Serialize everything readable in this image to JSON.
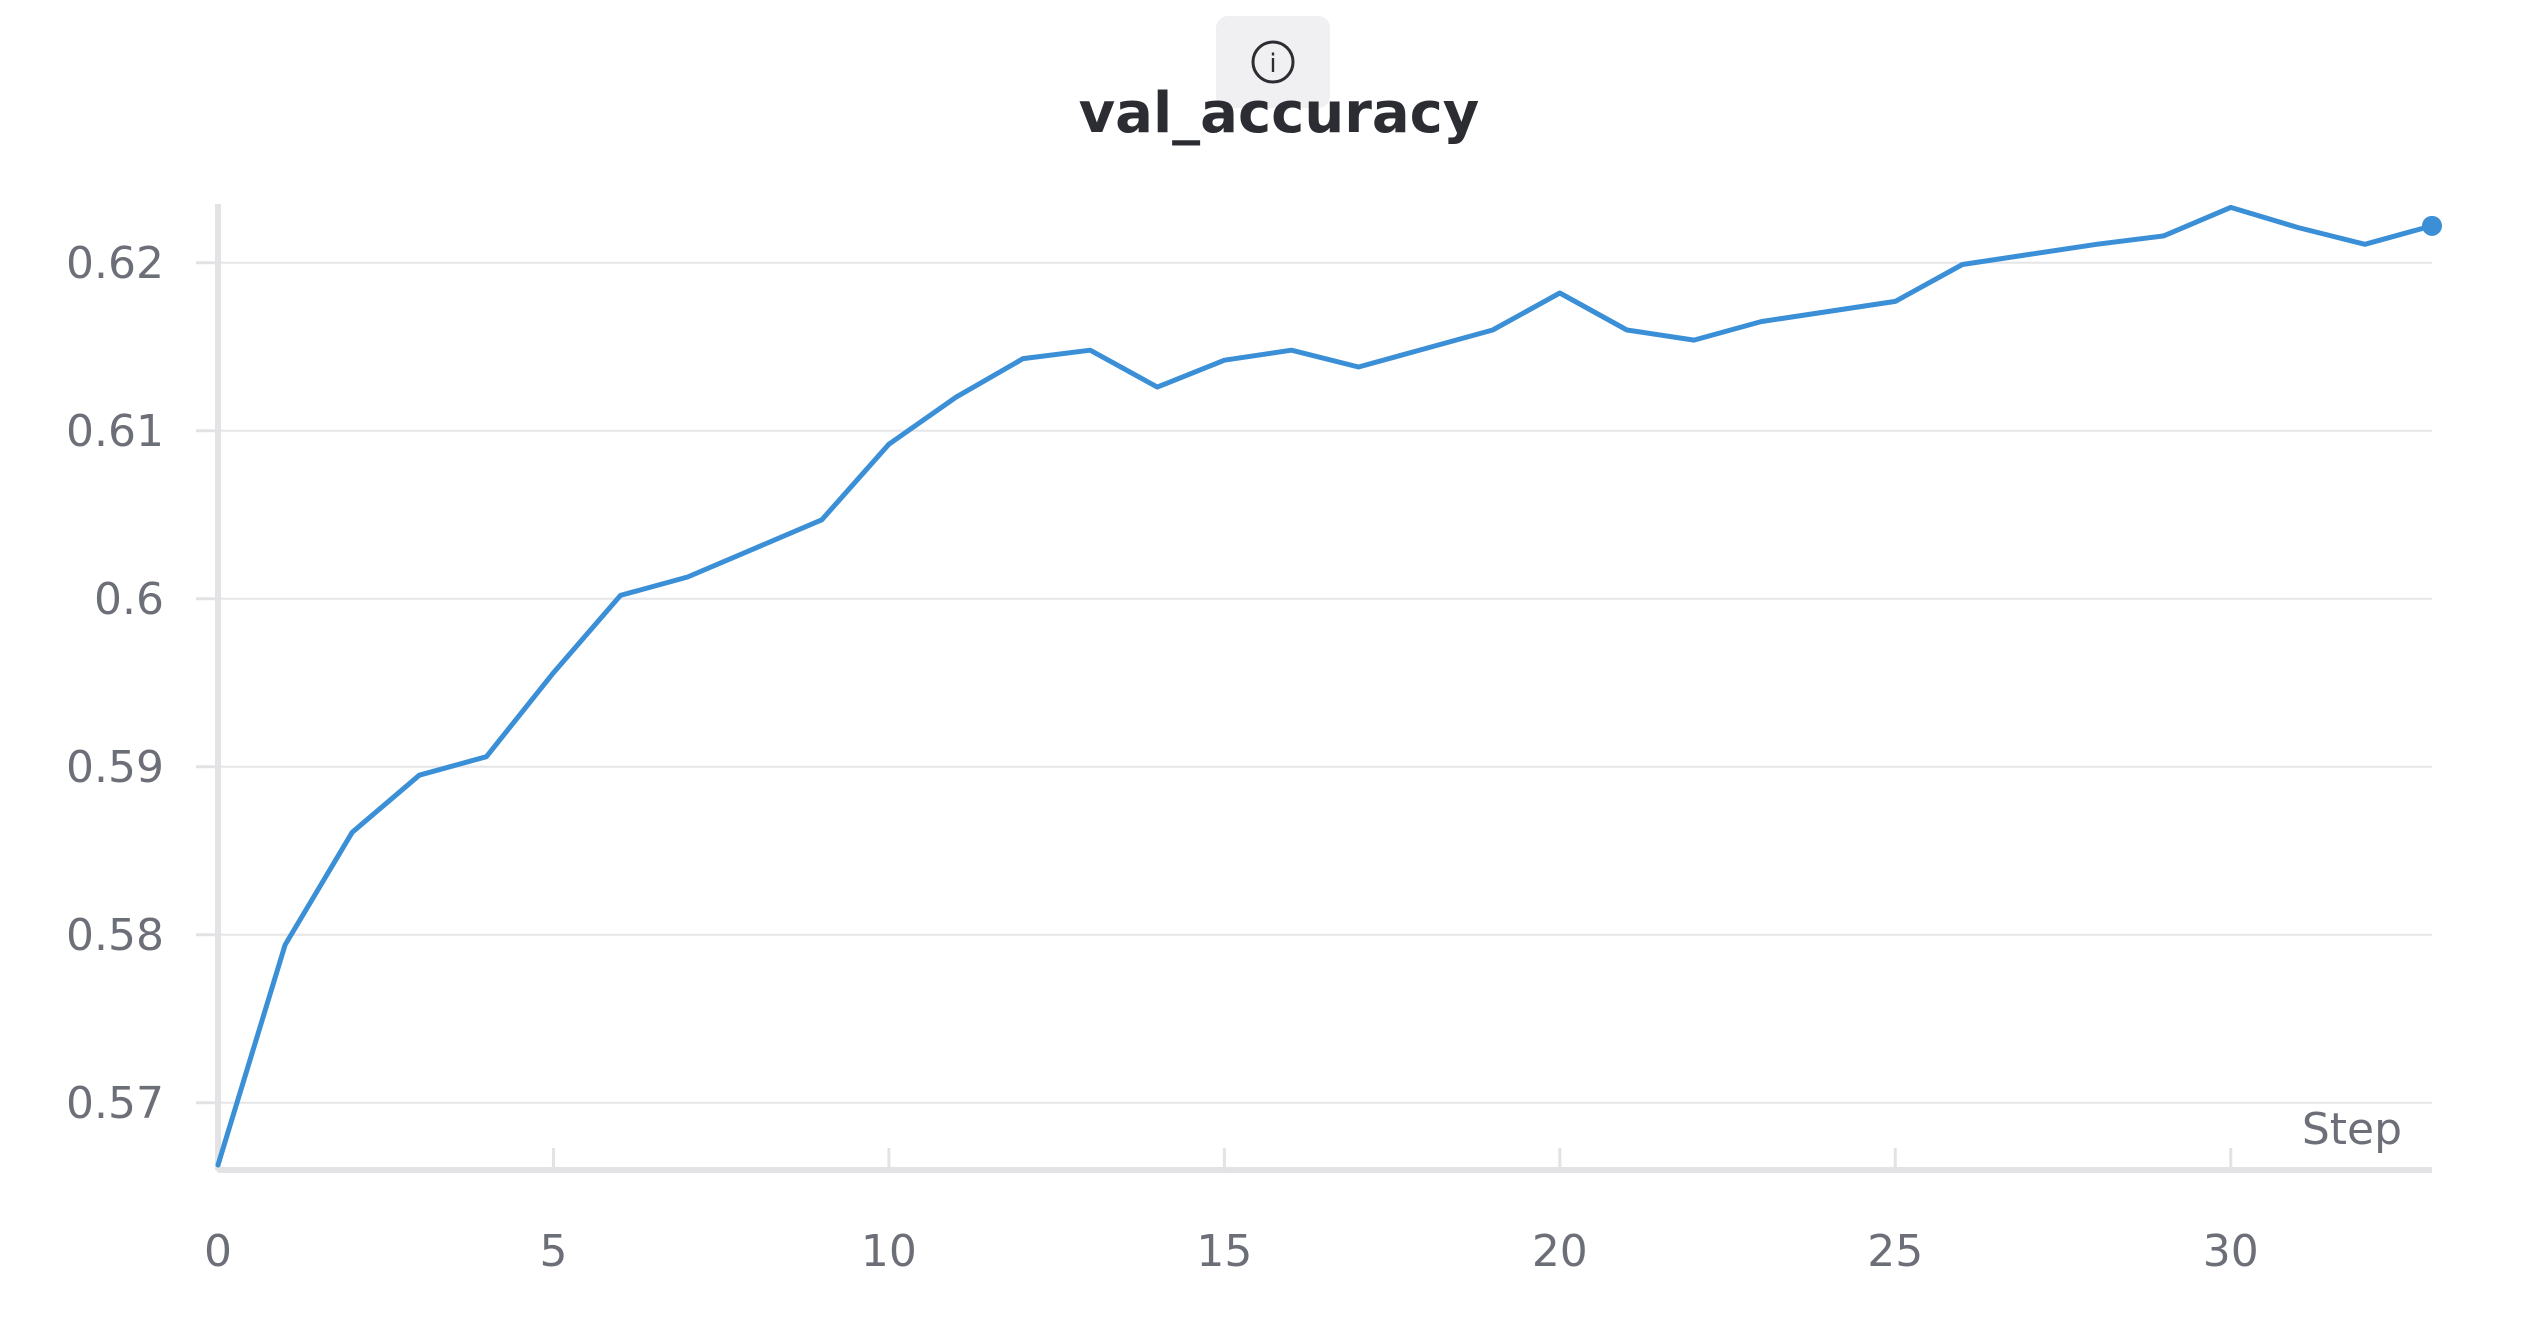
{
  "chart_data": {
    "type": "line",
    "title": "val_accuracy",
    "xlabel": "Step",
    "ylabel": "",
    "xlim": [
      0,
      33
    ],
    "ylim": [
      0.566,
      0.6235
    ],
    "x_ticks": [
      0,
      5,
      10,
      15,
      20,
      25,
      30
    ],
    "y_ticks": [
      0.57,
      0.58,
      0.59,
      0.6,
      0.61,
      0.62
    ],
    "y_tick_labels": [
      "0.57",
      "0.58",
      "0.59",
      "0.6",
      "0.61",
      "0.62"
    ],
    "grid": true,
    "legend": "none",
    "series": [
      {
        "color": "#3a8fd6",
        "x": [
          0,
          1,
          2,
          3,
          4,
          5,
          6,
          7,
          8,
          9,
          10,
          11,
          12,
          13,
          14,
          15,
          16,
          17,
          18,
          19,
          20,
          21,
          22,
          23,
          24,
          25,
          26,
          27,
          28,
          29,
          30,
          31,
          32,
          33
        ],
        "values": [
          0.5663,
          0.5794,
          0.5861,
          0.5895,
          0.5906,
          0.5956,
          0.6002,
          0.6013,
          0.603,
          0.6047,
          0.6092,
          0.612,
          0.6143,
          0.6148,
          0.6126,
          0.6142,
          0.6148,
          0.6138,
          0.6149,
          0.616,
          0.6182,
          0.616,
          0.6154,
          0.6165,
          0.6171,
          0.6177,
          0.6199,
          0.6205,
          0.6211,
          0.6216,
          0.6233,
          0.6221,
          0.6211,
          0.6222
        ]
      }
    ]
  },
  "icons": {
    "info": "info-icon",
    "info_glyph": "i"
  },
  "colors": {
    "line": "#3a8fd6",
    "grid": "#e6e6e9",
    "axis": "#e3e3e6",
    "text": "#6d6f78",
    "title": "#2b2d33"
  }
}
